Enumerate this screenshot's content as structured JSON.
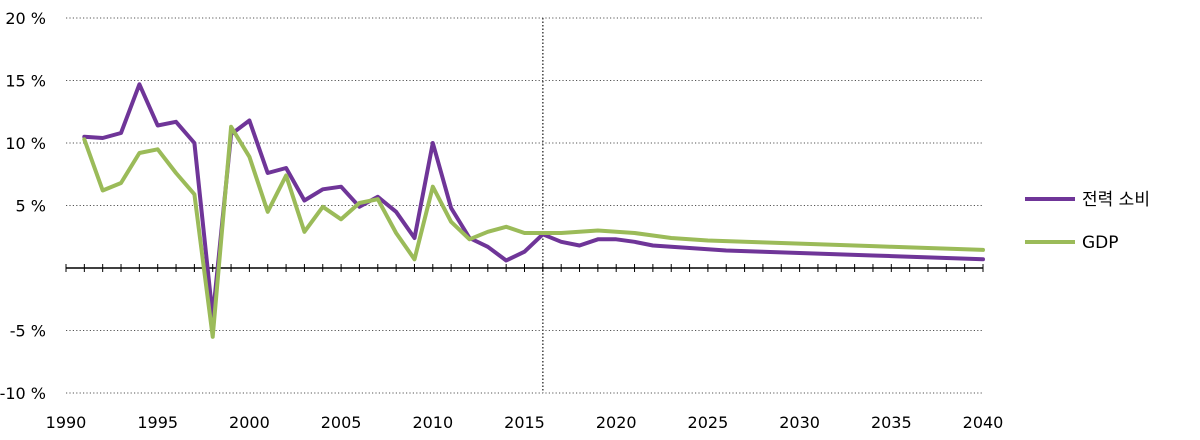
{
  "chart_data": {
    "type": "line",
    "title": "",
    "xlabel": "",
    "ylabel": "",
    "xlim": [
      1990,
      2040
    ],
    "ylim": [
      -10,
      20
    ],
    "grid": "horizontal-dotted",
    "legend_position": "right",
    "forecast_marker_x": 2016,
    "x_ticks": [
      1990,
      1995,
      2000,
      2005,
      2010,
      2015,
      2020,
      2025,
      2030,
      2035,
      2040
    ],
    "x_tick_labels": [
      "1990",
      "1995",
      "2000",
      "2005",
      "2010",
      "2015",
      "2020",
      "2025",
      "2030",
      "2035",
      "2040"
    ],
    "y_ticks": [
      -10,
      -5,
      5,
      10,
      15,
      20
    ],
    "y_tick_labels": [
      "-10 %",
      "-5 %",
      "5 %",
      "10 %",
      "15 %",
      "20 %"
    ],
    "x": [
      1991,
      1992,
      1993,
      1994,
      1995,
      1996,
      1997,
      1998,
      1999,
      2000,
      2001,
      2002,
      2003,
      2004,
      2005,
      2006,
      2007,
      2008,
      2009,
      2010,
      2011,
      2012,
      2013,
      2014,
      2015,
      2016,
      2017,
      2018,
      2019,
      2020,
      2021,
      2022,
      2023,
      2024,
      2025,
      2026,
      2027,
      2028,
      2029,
      2030,
      2031,
      2032,
      2033,
      2034,
      2035,
      2036,
      2037,
      2038,
      2039,
      2040
    ],
    "series": [
      {
        "name": "전력 소비",
        "color": "#6f3598",
        "values": [
          10.5,
          10.4,
          10.8,
          14.7,
          11.4,
          11.7,
          10.0,
          -3.9,
          10.7,
          11.8,
          7.6,
          8.0,
          5.4,
          6.3,
          6.5,
          4.9,
          5.7,
          4.5,
          2.4,
          10.0,
          4.8,
          2.4,
          1.7,
          0.6,
          1.3,
          2.7,
          2.1,
          1.8,
          2.3,
          2.3,
          2.1,
          1.8,
          1.7,
          1.6,
          1.5,
          1.4,
          1.35,
          1.3,
          1.25,
          1.2,
          1.15,
          1.1,
          1.05,
          1.0,
          0.95,
          0.9,
          0.85,
          0.8,
          0.75,
          0.7
        ]
      },
      {
        "name": "GDP",
        "color": "#9bbb59",
        "values": [
          10.3,
          6.2,
          6.8,
          9.2,
          9.5,
          7.6,
          5.9,
          -5.5,
          11.3,
          8.9,
          4.5,
          7.4,
          2.9,
          4.9,
          3.9,
          5.2,
          5.5,
          2.8,
          0.7,
          6.5,
          3.7,
          2.3,
          2.9,
          3.3,
          2.8,
          2.8,
          2.8,
          2.9,
          3.0,
          2.9,
          2.8,
          2.6,
          2.4,
          2.3,
          2.2,
          2.15,
          2.1,
          2.05,
          2.0,
          1.95,
          1.9,
          1.85,
          1.8,
          1.75,
          1.7,
          1.65,
          1.6,
          1.55,
          1.5,
          1.45
        ]
      }
    ]
  }
}
